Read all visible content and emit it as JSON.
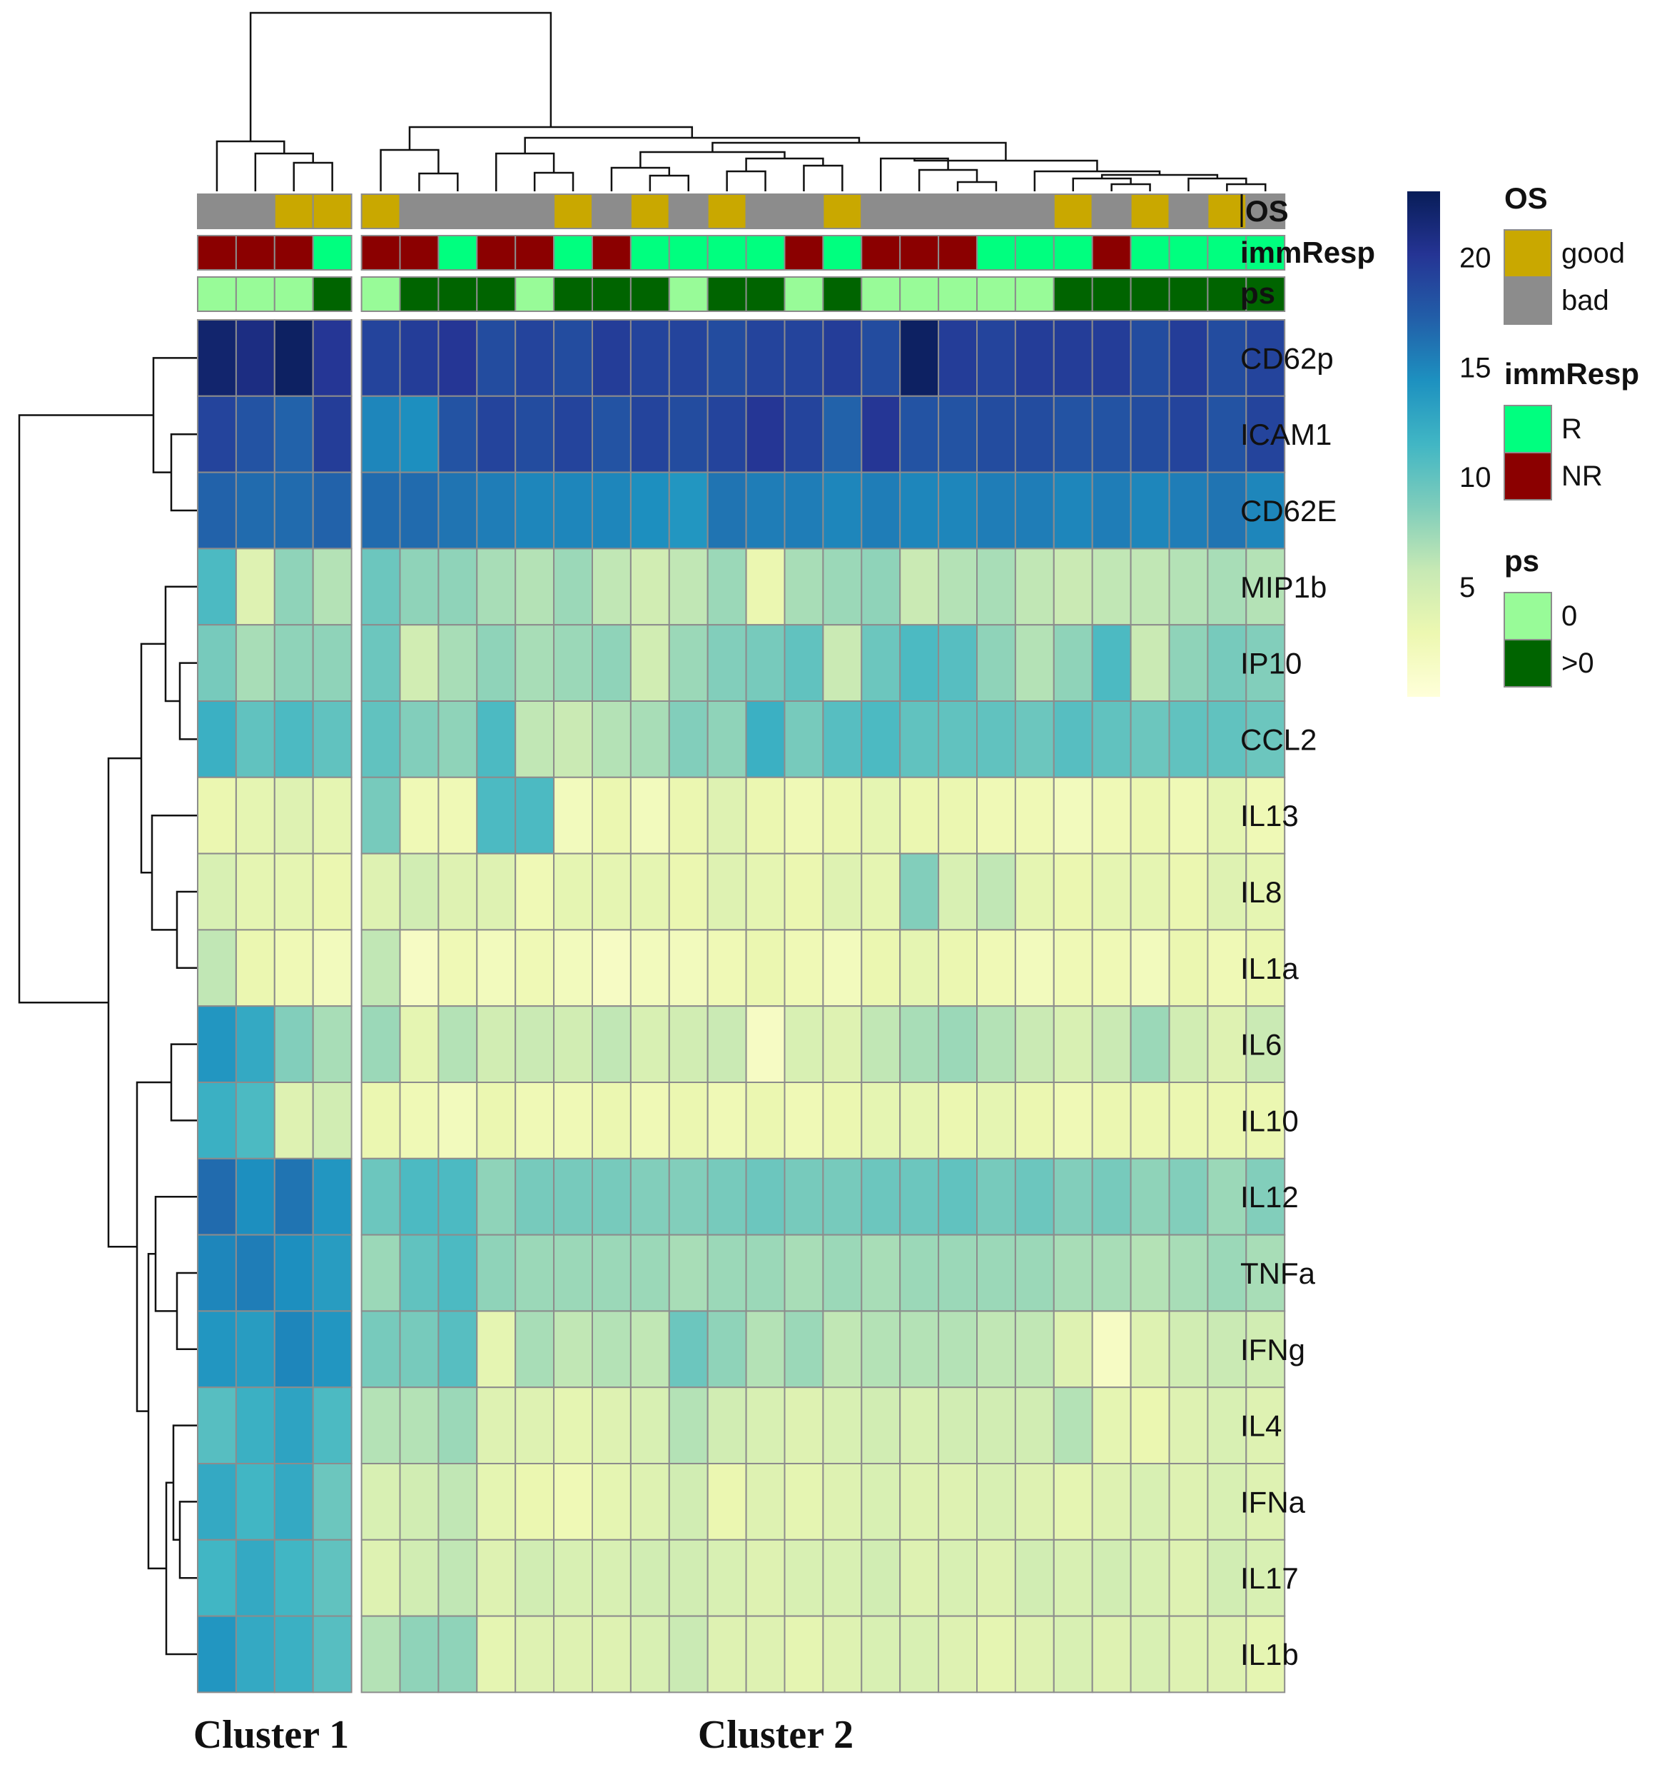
{
  "chart_data": {
    "type": "heatmap",
    "title": "",
    "rows": [
      "CD62p",
      "ICAM1",
      "CD62E",
      "MIP1b",
      "IP10",
      "CCL2",
      "IL13",
      "IL8",
      "IL1a",
      "IL6",
      "IL10",
      "IL12",
      "TNFa",
      "IFNg",
      "IL4",
      "IFNa",
      "IL17",
      "IL1b"
    ],
    "clusters": [
      {
        "label": "Cluster 1",
        "n_columns": 4
      },
      {
        "label": "Cluster 2",
        "n_columns": 24
      }
    ],
    "values": [
      [
        22,
        21,
        22.5,
        20,
        19,
        19.5,
        20,
        18.5,
        19,
        18.5,
        19.5,
        19,
        19,
        18.5,
        19,
        19,
        19.5,
        18.5,
        22.5,
        19.5,
        19,
        19.5,
        19.5,
        19.5,
        18.5,
        19.5,
        18.5,
        19
      ],
      [
        19,
        18,
        17,
        19.5,
        15,
        14.5,
        18,
        19,
        18.5,
        19,
        18,
        19,
        18.5,
        19,
        20,
        19,
        17,
        20,
        18,
        18,
        18.5,
        18.5,
        18,
        18,
        18.5,
        19,
        18,
        19
      ],
      [
        17,
        16.5,
        16.5,
        17,
        16.5,
        16.5,
        16,
        15.5,
        15,
        15,
        15,
        14.5,
        14,
        16,
        15.5,
        15.5,
        15,
        15.5,
        15,
        15,
        15.5,
        15.5,
        15,
        15.5,
        15,
        15.5,
        16,
        15
      ],
      [
        11,
        4,
        8,
        6.5,
        9.5,
        8,
        8,
        7,
        6.5,
        7.5,
        6,
        5,
        6,
        7.5,
        3,
        7,
        7.5,
        8,
        5.5,
        6.5,
        7,
        6,
        5.5,
        6,
        6,
        6.5,
        7,
        6.5
      ],
      [
        9,
        7,
        8,
        8,
        9.5,
        5,
        7,
        8,
        7,
        7.5,
        8,
        5,
        7.5,
        8.5,
        9,
        10,
        5.5,
        9.5,
        11,
        10.5,
        8,
        6.5,
        8,
        11,
        5.5,
        8,
        9,
        8.5
      ],
      [
        12,
        10,
        11,
        10,
        10,
        8.5,
        8,
        11,
        6,
        5.5,
        6.5,
        7,
        8.5,
        8,
        12,
        9,
        10.5,
        11,
        10,
        10,
        10,
        9.5,
        10.5,
        10,
        9.5,
        10,
        10,
        9.5
      ],
      [
        3,
        3.5,
        4,
        3.5,
        9,
        2.5,
        2.5,
        11,
        11,
        2,
        3,
        2,
        3,
        4,
        3,
        2.5,
        3,
        3.5,
        3,
        3,
        2.5,
        2.5,
        2,
        2.5,
        3,
        2.5,
        3.5,
        2.5
      ],
      [
        4.5,
        3.5,
        3.5,
        3,
        4,
        5,
        4,
        4,
        2.5,
        3.5,
        3.5,
        3.5,
        3,
        4,
        3.5,
        3,
        4,
        3.5,
        8.5,
        4.5,
        6,
        3.5,
        3,
        3.5,
        3.5,
        3,
        4,
        3.5
      ],
      [
        6,
        3,
        2.5,
        2,
        6,
        1.5,
        2.5,
        2,
        2.5,
        2,
        1.5,
        2,
        2,
        2.5,
        3,
        2.5,
        2,
        3,
        3.5,
        3,
        2.5,
        2,
        2.5,
        2.5,
        2,
        3,
        2.5,
        3
      ],
      [
        14,
        12.5,
        8.5,
        7,
        7.5,
        3.5,
        6.5,
        5,
        5.5,
        5,
        6,
        4.5,
        5,
        5.5,
        1.5,
        4.5,
        4,
        6,
        7,
        7.5,
        6.5,
        5.5,
        4.5,
        5.5,
        7.5,
        5,
        4,
        5.5
      ],
      [
        12,
        11,
        4,
        5,
        3,
        2.5,
        2,
        3,
        2.5,
        2.5,
        3,
        2.5,
        3,
        2.5,
        3,
        2.5,
        3,
        3.5,
        3.5,
        3,
        3.5,
        3,
        2.5,
        3,
        3,
        3,
        3,
        3
      ],
      [
        16.5,
        14.5,
        16,
        14,
        9.5,
        11,
        11,
        8,
        9,
        9,
        9,
        8.5,
        8.5,
        9,
        9.5,
        9,
        9,
        9.5,
        9.5,
        10,
        9,
        9.5,
        8.5,
        9,
        8,
        8.5,
        7.5,
        8.5
      ],
      [
        15,
        15.5,
        14.5,
        13.5,
        7.5,
        10,
        11,
        8,
        7.5,
        7.5,
        7.5,
        7.5,
        7,
        7.5,
        7.5,
        7,
        7.5,
        7,
        7.5,
        7.5,
        7.5,
        7.5,
        7,
        7,
        6.5,
        7,
        7.5,
        7
      ],
      [
        14,
        13.5,
        15,
        14,
        9,
        9,
        10.5,
        3.5,
        7,
        6,
        6.5,
        6,
        9.5,
        8,
        6.5,
        7.5,
        6,
        6.5,
        6.5,
        6.5,
        6,
        6,
        4,
        1.5,
        4,
        5,
        5.5,
        5
      ],
      [
        10.5,
        12,
        13,
        11,
        6.5,
        6.5,
        7.5,
        4,
        4,
        3.5,
        4,
        4.5,
        6.5,
        5,
        4.5,
        4,
        4.5,
        5,
        4.5,
        5,
        5,
        5,
        6.5,
        3.5,
        3,
        4,
        4.5,
        4
      ],
      [
        12.5,
        11.5,
        12.5,
        9.5,
        4.5,
        5,
        6,
        3.5,
        3,
        2.5,
        3.5,
        4,
        5,
        3,
        4,
        3.5,
        4,
        4.5,
        4,
        4,
        4.5,
        4,
        3.5,
        4,
        4.5,
        4,
        4.5,
        4
      ],
      [
        11.5,
        12.5,
        11.5,
        10,
        4,
        5,
        6,
        4,
        5,
        4.5,
        4.5,
        5,
        5,
        4.5,
        4,
        4.5,
        4.5,
        5,
        4,
        4.5,
        4,
        5,
        4.5,
        5,
        4.5,
        4,
        5,
        4.5
      ],
      [
        14,
        12.5,
        12,
        10.5,
        6.5,
        8,
        8,
        3.5,
        4,
        4,
        4,
        4.5,
        5.5,
        4,
        4,
        3.5,
        4,
        4.5,
        4.5,
        4,
        3.5,
        4,
        4.5,
        4,
        4.5,
        4,
        4,
        3.5
      ]
    ],
    "annotations": {
      "OS": [
        "bad",
        "bad",
        "good",
        "good",
        "good",
        "bad",
        "bad",
        "bad",
        "bad",
        "good",
        "bad",
        "good",
        "bad",
        "good",
        "bad",
        "bad",
        "good",
        "bad",
        "bad",
        "bad",
        "bad",
        "bad",
        "good",
        "bad",
        "good",
        "bad",
        "good",
        "bad"
      ],
      "immResp": [
        "NR",
        "NR",
        "NR",
        "R",
        "NR",
        "NR",
        "R",
        "NR",
        "NR",
        "R",
        "NR",
        "R",
        "R",
        "R",
        "R",
        "NR",
        "R",
        "NR",
        "NR",
        "NR",
        "R",
        "R",
        "R",
        "NR",
        "R",
        "R",
        "R",
        "R"
      ],
      "ps": [
        "0",
        "0",
        "0",
        "1",
        "0",
        "1",
        "1",
        "1",
        "0",
        "1",
        "1",
        "1",
        "0",
        "1",
        "1",
        "0",
        "1",
        "0",
        "0",
        "0",
        "0",
        "0",
        "1",
        "1",
        "1",
        "1",
        "1",
        "1"
      ]
    },
    "colorbar": {
      "min": 0,
      "max": 23,
      "ticks": [
        5,
        10,
        15,
        20
      ]
    },
    "legend": {
      "groups": [
        {
          "title": "OS",
          "entries": [
            {
              "label": "good",
              "color": "#c9a800"
            },
            {
              "label": "bad",
              "color": "#8c8c8c"
            }
          ]
        },
        {
          "title": "immResp",
          "entries": [
            {
              "label": "R",
              "color": "#00ff7f"
            },
            {
              "label": "NR",
              "color": "#8b0000"
            }
          ]
        },
        {
          "title": "ps",
          "entries": [
            {
              "label": "0",
              "color": "#98fb98"
            },
            {
              "label": ">0",
              "color": "#006400"
            }
          ]
        }
      ]
    },
    "colors": {
      "scale": [
        "#ffffd9",
        "#edf8b1",
        "#c7e9b4",
        "#7fcdbb",
        "#41b6c4",
        "#1d91c0",
        "#225ea8",
        "#253494",
        "#081d58"
      ],
      "grid": "#8c8c8c",
      "annotation_rows": {
        "OS": {
          "good": "#c9a800",
          "bad": "#8c8c8c"
        },
        "immResp": {
          "R": "#00ff7f",
          "NR": "#8b0000"
        },
        "ps": {
          "0": "#98fb98",
          "1": "#006400"
        }
      }
    }
  }
}
